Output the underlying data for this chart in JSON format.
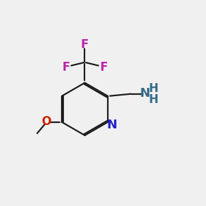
{
  "background_color": "#f0f0f0",
  "bond_color": "#1a1a1a",
  "atom_colors": {
    "N_ring": "#2222cc",
    "N_amine": "#336b87",
    "O": "#cc2200",
    "F": "#bb22aa",
    "H": "#336b87"
  },
  "font_size": 12,
  "lw": 1.6
}
